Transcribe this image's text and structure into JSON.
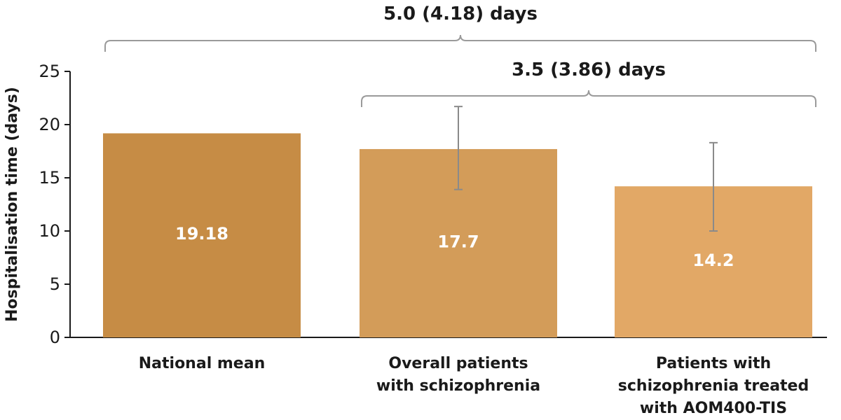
{
  "chart_data": {
    "type": "bar",
    "categories": [
      [
        "National mean"
      ],
      [
        "Overall patients",
        "with schizophrenia"
      ],
      [
        "Patients with",
        "schizophrenia treated",
        "with AOM400-TIS"
      ]
    ],
    "values": [
      19.18,
      17.7,
      14.2
    ],
    "data_labels": [
      "19.18",
      "17.7",
      "14.2"
    ],
    "error_bars": [
      null,
      [
        13.9,
        21.7
      ],
      [
        10.0,
        18.3
      ]
    ],
    "bar_colors": [
      "#c68c45",
      "#d39c59",
      "#e2a866"
    ],
    "ylabel": "Hospitalisation time (days)",
    "ylim": [
      0,
      25
    ],
    "yticks": [
      0,
      5,
      10,
      15,
      20,
      25
    ],
    "brackets": [
      {
        "from": 0,
        "to": 2,
        "label": "5.0 (4.18) days"
      },
      {
        "from": 1,
        "to": 2,
        "label": "3.5 (3.86) days"
      }
    ],
    "grid": false,
    "legend": "none"
  }
}
